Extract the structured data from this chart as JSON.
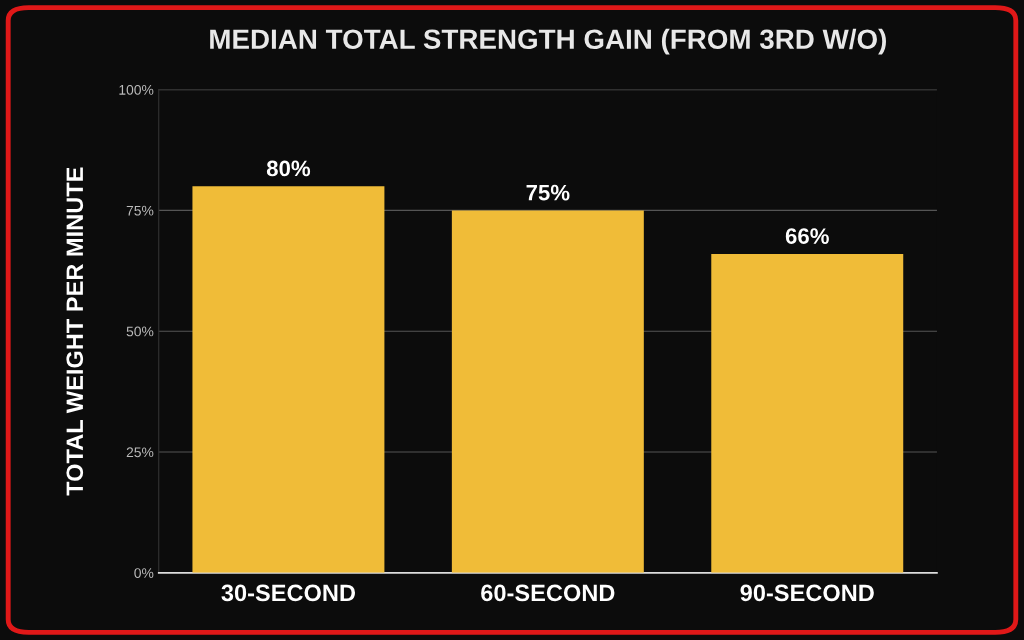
{
  "chart_data": {
    "type": "bar",
    "title": "MEDIAN TOTAL STRENGTH GAIN (FROM 3RD W/O)",
    "ylabel": "TOTAL WEIGHT PER MINUTE",
    "categories": [
      "30-SECOND",
      "60-SECOND",
      "90-SECOND"
    ],
    "values": [
      80,
      75,
      66
    ],
    "color": "#f0bc38",
    "value_labels": [
      "80%",
      "75%",
      "66%"
    ],
    "ylim": [
      0,
      100
    ],
    "yticks": [
      {
        "value": 0,
        "label": "0%"
      },
      {
        "value": 25,
        "label": "25%"
      },
      {
        "value": 50,
        "label": "50%"
      },
      {
        "value": 75,
        "label": "75%"
      },
      {
        "value": 100,
        "label": "100%"
      }
    ],
    "grid": "y"
  }
}
